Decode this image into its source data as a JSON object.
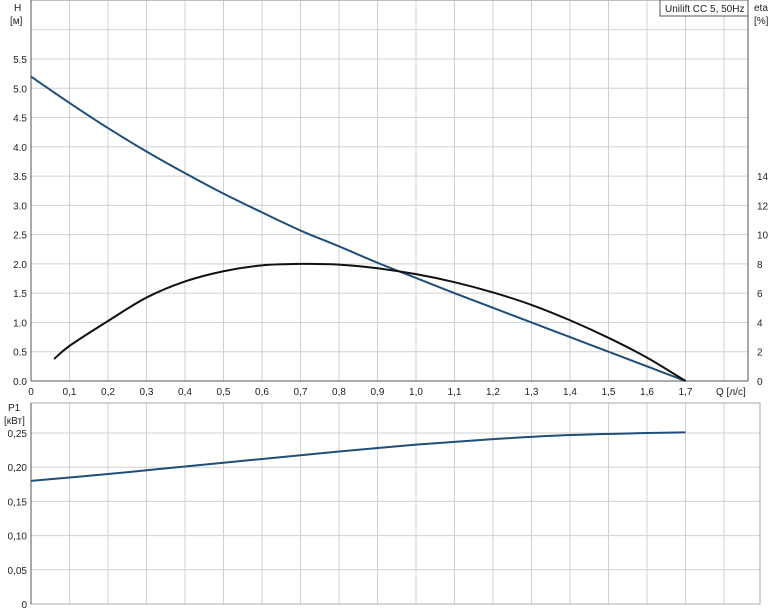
{
  "chart_data": [
    {
      "type": "line",
      "title": "Unilift CC 5, 50Hz",
      "xlabel": "Q [л/с]",
      "ylabel": "H",
      "ylabel_unit": "[м]",
      "y2label": "eta",
      "y2label_unit": "[%]",
      "xlim": [
        0,
        1.9
      ],
      "ylim": [
        0,
        6.5
      ],
      "y2lim": [
        0,
        26
      ],
      "grid": true,
      "x_ticks": [
        "0",
        "0,1",
        "0,2",
        "0,3",
        "0,4",
        "0,5",
        "0,6",
        "0,7",
        "0,8",
        "0,9",
        "1,0",
        "1,1",
        "1,2",
        "1,3",
        "1,4",
        "1,5",
        "1,6",
        "1,7"
      ],
      "y_ticks": [
        "0.0",
        "0.5",
        "1.0",
        "1.5",
        "2.0",
        "2.5",
        "3.0",
        "3.5",
        "4.0",
        "4.5",
        "5.0",
        "5.5"
      ],
      "y2_ticks": [
        "0",
        "2",
        "4",
        "6",
        "8",
        "10",
        "12",
        "14"
      ],
      "series": [
        {
          "axis": "left",
          "color": "#1f4e79",
          "x": [
            0,
            0.1,
            0.2,
            0.3,
            0.4,
            0.5,
            0.6,
            0.7,
            0.8,
            0.9,
            1.0,
            1.1,
            1.2,
            1.3,
            1.4,
            1.5,
            1.6,
            1.7
          ],
          "y": [
            5.2,
            4.75,
            4.32,
            3.92,
            3.55,
            3.2,
            2.88,
            2.57,
            2.3,
            2.02,
            1.76,
            1.5,
            1.25,
            1.0,
            0.75,
            0.5,
            0.25,
            0
          ]
        },
        {
          "axis": "right",
          "color": "#111111",
          "x": [
            0.06,
            0.1,
            0.2,
            0.3,
            0.4,
            0.5,
            0.6,
            0.7,
            0.8,
            0.9,
            1.0,
            1.1,
            1.2,
            1.3,
            1.4,
            1.5,
            1.6,
            1.7
          ],
          "y": [
            1.5,
            2.4,
            4.1,
            5.7,
            6.8,
            7.5,
            7.9,
            8.0,
            7.95,
            7.7,
            7.3,
            6.75,
            6.05,
            5.2,
            4.15,
            2.95,
            1.6,
            0
          ]
        }
      ]
    },
    {
      "type": "line",
      "ylabel": "P1",
      "ylabel_unit": "[кВт]",
      "xlim": [
        0,
        1.9
      ],
      "ylim": [
        0,
        0.29
      ],
      "grid": true,
      "y_ticks": [
        "0",
        "0,05",
        "0,10",
        "0,15",
        "0,20",
        "0,25"
      ],
      "series": [
        {
          "color": "#1f4e79",
          "x": [
            0,
            0.2,
            0.4,
            0.6,
            0.8,
            1.0,
            1.2,
            1.4,
            1.6,
            1.7
          ],
          "y": [
            0.18,
            0.19,
            0.201,
            0.212,
            0.223,
            0.233,
            0.241,
            0.247,
            0.25,
            0.251
          ]
        }
      ]
    }
  ]
}
